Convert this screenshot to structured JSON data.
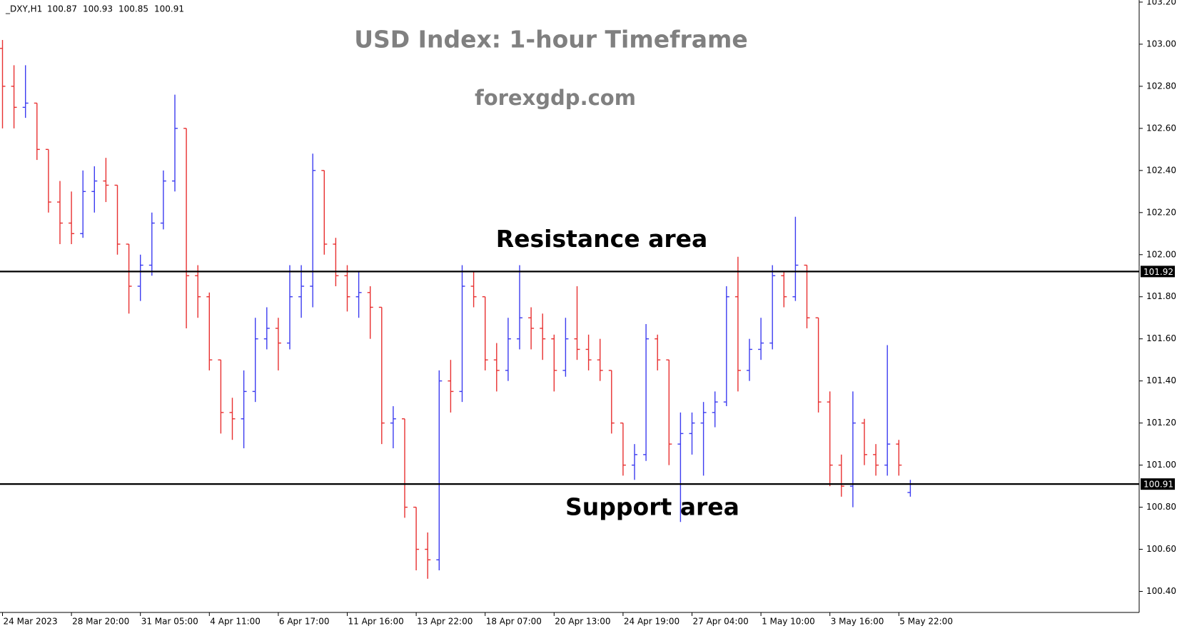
{
  "chart_data": {
    "type": "ohlc",
    "title": "USD Index: 1-hour Timeframe",
    "subtitle": "forexgdp.com",
    "symbol": "_DXY,H1",
    "categories": [
      "24 Mar 2023",
      null,
      null,
      null,
      null,
      null,
      "28 Mar 20:00",
      null,
      null,
      null,
      null,
      null,
      "31 Mar 05:00",
      null,
      null,
      null,
      null,
      null,
      "4 Apr 11:00",
      null,
      null,
      null,
      null,
      null,
      "6 Apr 17:00",
      null,
      null,
      null,
      null,
      null,
      "11 Apr 16:00",
      null,
      null,
      null,
      null,
      null,
      "13 Apr 22:00",
      null,
      null,
      null,
      null,
      null,
      "18 Apr 07:00",
      null,
      null,
      null,
      null,
      null,
      "20 Apr 13:00",
      null,
      null,
      null,
      null,
      null,
      "24 Apr 19:00",
      null,
      null,
      null,
      null,
      null,
      "27 Apr 04:00",
      null,
      null,
      null,
      null,
      null,
      "1 May 10:00",
      null,
      null,
      null,
      null,
      null,
      "3 May 16:00",
      null,
      null,
      null,
      null,
      null,
      "5 May 22:00",
      null
    ],
    "open": [
      102.98,
      102.8,
      102.7,
      102.72,
      102.5,
      102.25,
      102.15,
      102.1,
      102.3,
      102.35,
      102.33,
      102.05,
      101.85,
      101.95,
      102.15,
      102.35,
      102.6,
      101.9,
      101.8,
      101.5,
      101.25,
      101.22,
      101.35,
      101.6,
      101.65,
      101.58,
      101.8,
      101.85,
      102.4,
      102.05,
      101.9,
      101.8,
      101.82,
      101.75,
      101.2,
      101.22,
      100.8,
      100.6,
      100.55,
      101.4,
      101.35,
      101.85,
      101.8,
      101.5,
      101.45,
      101.6,
      101.7,
      101.65,
      101.6,
      101.45,
      101.6,
      101.55,
      101.5,
      101.45,
      101.2,
      101.0,
      101.05,
      101.6,
      101.5,
      101.1,
      101.15,
      101.2,
      101.25,
      101.3,
      101.8,
      101.45,
      101.55,
      101.58,
      101.9,
      101.8,
      101.95,
      101.7,
      101.3,
      101.0,
      100.9,
      101.2,
      101.05,
      101.0,
      101.1,
      100.87
    ],
    "high": [
      103.02,
      102.9,
      102.9,
      102.72,
      102.5,
      102.35,
      102.3,
      102.4,
      102.42,
      102.46,
      102.33,
      102.05,
      102.0,
      102.2,
      102.4,
      102.76,
      102.6,
      101.95,
      101.82,
      101.5,
      101.32,
      101.45,
      101.7,
      101.75,
      101.7,
      101.95,
      101.95,
      102.48,
      102.4,
      102.08,
      101.95,
      101.92,
      101.85,
      101.75,
      101.28,
      101.22,
      100.8,
      100.68,
      101.45,
      101.5,
      101.95,
      101.92,
      101.8,
      101.58,
      101.7,
      101.95,
      101.75,
      101.72,
      101.62,
      101.7,
      101.85,
      101.62,
      101.6,
      101.45,
      101.2,
      101.1,
      101.67,
      101.62,
      101.5,
      101.25,
      101.25,
      101.3,
      101.35,
      101.85,
      101.99,
      101.6,
      101.7,
      101.95,
      101.92,
      102.18,
      101.95,
      101.7,
      101.35,
      101.05,
      101.35,
      101.22,
      101.1,
      101.57,
      101.12,
      100.93
    ],
    "low": [
      102.6,
      102.6,
      102.65,
      102.45,
      102.2,
      102.05,
      102.05,
      102.08,
      102.2,
      102.25,
      102.0,
      101.72,
      101.78,
      101.9,
      102.12,
      102.3,
      101.65,
      101.7,
      101.45,
      101.15,
      101.12,
      101.08,
      101.3,
      101.55,
      101.45,
      101.55,
      101.7,
      101.75,
      102.0,
      101.85,
      101.73,
      101.7,
      101.6,
      101.1,
      101.08,
      100.75,
      100.5,
      100.46,
      100.5,
      101.25,
      101.3,
      101.75,
      101.45,
      101.35,
      101.4,
      101.55,
      101.55,
      101.5,
      101.35,
      101.42,
      101.5,
      101.45,
      101.4,
      101.15,
      100.95,
      100.93,
      101.02,
      101.45,
      101.0,
      100.73,
      101.05,
      100.95,
      101.18,
      101.28,
      101.35,
      101.4,
      101.5,
      101.55,
      101.75,
      101.78,
      101.65,
      101.25,
      100.9,
      100.85,
      100.8,
      101.0,
      100.95,
      100.95,
      100.95,
      100.85
    ],
    "close": [
      102.8,
      102.7,
      102.72,
      102.5,
      102.25,
      102.15,
      102.1,
      102.3,
      102.35,
      102.33,
      102.05,
      101.85,
      101.95,
      102.15,
      102.35,
      102.6,
      101.9,
      101.8,
      101.5,
      101.25,
      101.22,
      101.35,
      101.6,
      101.65,
      101.58,
      101.8,
      101.85,
      102.4,
      102.05,
      101.9,
      101.8,
      101.82,
      101.75,
      101.2,
      101.22,
      100.8,
      100.6,
      100.55,
      101.4,
      101.35,
      101.85,
      101.8,
      101.5,
      101.45,
      101.6,
      101.7,
      101.65,
      101.6,
      101.45,
      101.6,
      101.55,
      101.5,
      101.45,
      101.2,
      101.0,
      101.05,
      101.6,
      101.5,
      101.1,
      101.15,
      101.2,
      101.25,
      101.3,
      101.8,
      101.45,
      101.55,
      101.58,
      101.9,
      101.8,
      101.95,
      101.7,
      101.3,
      101.0,
      100.9,
      101.2,
      101.05,
      101.0,
      101.1,
      101.0,
      100.91
    ],
    "up_color": "#3c3cf0",
    "down_color": "#e83030",
    "ylim": [
      100.3,
      103.21
    ],
    "yticks": [
      {
        "value": 100.4,
        "label": "100.40"
      },
      {
        "value": 100.6,
        "label": "100.60"
      },
      {
        "value": 100.8,
        "label": "100.80"
      },
      {
        "value": 101.0,
        "label": "101.00"
      },
      {
        "value": 101.2,
        "label": "101.20"
      },
      {
        "value": 101.4,
        "label": "101.40"
      },
      {
        "value": 101.6,
        "label": "101.60"
      },
      {
        "value": 101.8,
        "label": "101.80"
      },
      {
        "value": 102.0,
        "label": "102.00"
      },
      {
        "value": 102.2,
        "label": "102.20"
      },
      {
        "value": 102.4,
        "label": "102.40"
      },
      {
        "value": 102.6,
        "label": "102.60"
      },
      {
        "value": 102.8,
        "label": "102.80"
      },
      {
        "value": 103.0,
        "label": "103.00"
      },
      {
        "value": 103.2,
        "label": "103.20"
      }
    ],
    "levels": [
      {
        "value": 101.92,
        "name": "Resistance area"
      },
      {
        "value": 100.91,
        "name": "Support area"
      }
    ]
  }
}
